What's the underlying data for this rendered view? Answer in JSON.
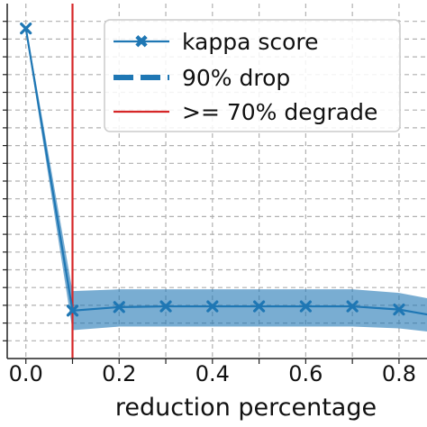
{
  "chart_data": {
    "type": "line",
    "title": "",
    "xlabel": "reduction percentage",
    "ylabel": "",
    "xlim": [
      -0.04,
      0.86
    ],
    "ylim": [
      0.0,
      1.0
    ],
    "grid": true,
    "legend_location": "top-right",
    "x_ticks": [
      0.0,
      0.1,
      0.2,
      0.3,
      0.4,
      0.5,
      0.6,
      0.7,
      0.8
    ],
    "x_tick_labels": [
      "0.0",
      "0.2",
      "0.4",
      "0.6",
      "0.8"
    ],
    "x_tick_label_values": [
      0.0,
      0.2,
      0.4,
      0.6,
      0.8
    ],
    "y_ticks": [
      0.05,
      0.1,
      0.15,
      0.2,
      0.25,
      0.3,
      0.35,
      0.4,
      0.45,
      0.5,
      0.55,
      0.6,
      0.65,
      0.7,
      0.75,
      0.8,
      0.85,
      0.9,
      0.95
    ],
    "series": [
      {
        "name": "kappa score",
        "color": "#1f77b4",
        "marker": "x",
        "x": [
          0.0,
          0.1,
          0.2,
          0.3,
          0.4,
          0.5,
          0.6,
          0.7,
          0.8,
          0.9
        ],
        "y": [
          0.93,
          0.135,
          0.145,
          0.147,
          0.147,
          0.147,
          0.147,
          0.147,
          0.138,
          0.115
        ],
        "band_lower": [
          0.92,
          0.08,
          0.09,
          0.09,
          0.09,
          0.09,
          0.09,
          0.09,
          0.085,
          0.07
        ],
        "band_upper": [
          0.94,
          0.19,
          0.195,
          0.195,
          0.195,
          0.195,
          0.195,
          0.195,
          0.185,
          0.16
        ]
      }
    ],
    "reference_lines": [
      {
        "name": "90% drop",
        "orientation": "horizontal",
        "style": "dashed",
        "color": "#1f77b4",
        "visible_in_plot": false
      },
      {
        "name": ">= 70% degrade",
        "orientation": "vertical",
        "x": 0.1,
        "color": "#d62728"
      }
    ],
    "legend": [
      {
        "label": "kappa score",
        "style": "line-marker",
        "color": "#1f77b4"
      },
      {
        "label": "90% drop",
        "style": "dashed",
        "color": "#1f77b4"
      },
      {
        "label": ">= 70% degrade",
        "style": "solid",
        "color": "#d62728"
      }
    ]
  }
}
